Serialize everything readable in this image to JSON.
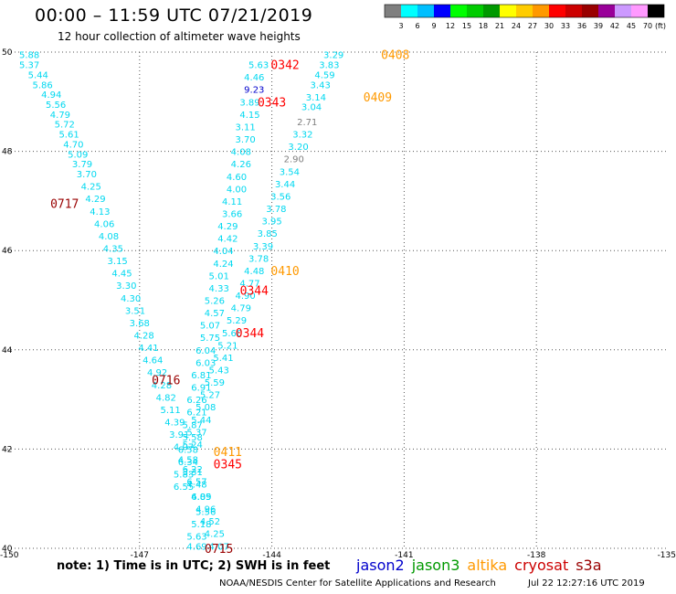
{
  "header": {
    "title": "00:00 – 11:59 UTC 07/21/2019",
    "subtitle": "12 hour collection of altimeter wave heights"
  },
  "colorbar": {
    "unit": "(ft)",
    "labels": [
      "3",
      "6",
      "9",
      "12",
      "15",
      "18",
      "21",
      "24",
      "27",
      "30",
      "33",
      "36",
      "39",
      "42",
      "45",
      "70"
    ],
    "colors": [
      "#7f7f7f",
      "#00ffff",
      "#00bfff",
      "#0000ff",
      "#00ff00",
      "#00cc00",
      "#009900",
      "#ffff00",
      "#ffcc00",
      "#ff9900",
      "#ff0000",
      "#cc0000",
      "#990000",
      "#990099",
      "#cc99ff",
      "#ff99ff",
      "#000000"
    ]
  },
  "footer": {
    "note": "note:  1) Time is in UTC;  2) SWH is in feet",
    "credit": "NOAA/NESDIS Center for Satellite Applications and Research",
    "timestamp": "Jul 22 12:27:16 UTC 2019",
    "satellites": [
      {
        "name": "jason2",
        "color": "#0000cc"
      },
      {
        "name": "jason3",
        "color": "#009900"
      },
      {
        "name": "altika",
        "color": "#ff9900"
      },
      {
        "name": "cryosat",
        "color": "#cc0000"
      },
      {
        "name": "s3a",
        "color": "#990000"
      }
    ]
  },
  "chart_data": {
    "type": "scatter",
    "xlim": [
      -150,
      -135
    ],
    "ylim": [
      40,
      50
    ],
    "xticks": [
      "-150",
      "-147",
      "-144",
      "-141",
      "-138",
      "-135"
    ],
    "xtick_values": [
      -150,
      -147,
      -144,
      -141,
      -138,
      -135
    ],
    "yticks": [
      "40",
      "42",
      "44",
      "46",
      "48",
      "50"
    ],
    "ytick_values": [
      40,
      42,
      44,
      46,
      48,
      50
    ],
    "grid": true,
    "time_labels": [
      {
        "text": "0408",
        "lon": -141.2,
        "lat": 49.95,
        "color": "#ff9900"
      },
      {
        "text": "0342",
        "lon": -143.7,
        "lat": 49.75,
        "color": "#ff0000"
      },
      {
        "text": "0409",
        "lon": -141.6,
        "lat": 49.1,
        "color": "#ff9900"
      },
      {
        "text": "0343",
        "lon": -144.0,
        "lat": 49.0,
        "color": "#ff0000"
      },
      {
        "text": "0717",
        "lon": -148.7,
        "lat": 46.95,
        "color": "#990000"
      },
      {
        "text": "0410",
        "lon": -143.7,
        "lat": 45.6,
        "color": "#ff9900"
      },
      {
        "text": "0344",
        "lon": -144.4,
        "lat": 45.2,
        "color": "#ff0000"
      },
      {
        "text": "0344",
        "lon": -144.5,
        "lat": 44.35,
        "color": "#ff0000"
      },
      {
        "text": "0716",
        "lon": -146.4,
        "lat": 43.4,
        "color": "#990000"
      },
      {
        "text": "0411",
        "lon": -145.0,
        "lat": 41.95,
        "color": "#ff9900"
      },
      {
        "text": "0345",
        "lon": -145.0,
        "lat": 41.7,
        "color": "#ff0000"
      },
      {
        "text": "0715",
        "lon": -145.2,
        "lat": 40.0,
        "color": "#990000"
      }
    ],
    "series": [
      {
        "name": "0717/0716/0715",
        "points": [
          {
            "lon": -149.5,
            "lat": 49.95,
            "swh": "5.88"
          },
          {
            "lon": -149.5,
            "lat": 49.75,
            "swh": "5.37"
          },
          {
            "lon": -149.3,
            "lat": 49.55,
            "swh": "5.44"
          },
          {
            "lon": -149.2,
            "lat": 49.35,
            "swh": "5.86"
          },
          {
            "lon": -149.0,
            "lat": 49.15,
            "swh": "4.94"
          },
          {
            "lon": -148.9,
            "lat": 48.95,
            "swh": "5.56"
          },
          {
            "lon": -148.8,
            "lat": 48.75,
            "swh": "4.79"
          },
          {
            "lon": -148.7,
            "lat": 48.55,
            "swh": "5.72"
          },
          {
            "lon": -148.6,
            "lat": 48.35,
            "swh": "5.61"
          },
          {
            "lon": -148.5,
            "lat": 48.15,
            "swh": "4.70"
          },
          {
            "lon": -148.4,
            "lat": 47.95,
            "swh": "5.09"
          },
          {
            "lon": -148.3,
            "lat": 47.75,
            "swh": "3.79"
          },
          {
            "lon": -148.2,
            "lat": 47.55,
            "swh": "3.70"
          },
          {
            "lon": -148.1,
            "lat": 47.3,
            "swh": "4.25"
          },
          {
            "lon": -148.0,
            "lat": 47.05,
            "swh": "4.29"
          },
          {
            "lon": -147.9,
            "lat": 46.8,
            "swh": "4.13"
          },
          {
            "lon": -147.8,
            "lat": 46.55,
            "swh": "4.06"
          },
          {
            "lon": -147.7,
            "lat": 46.3,
            "swh": "4.08"
          },
          {
            "lon": -147.6,
            "lat": 46.05,
            "swh": "4.35"
          },
          {
            "lon": -147.5,
            "lat": 45.8,
            "swh": "3.15"
          },
          {
            "lon": -147.4,
            "lat": 45.55,
            "swh": "4.45"
          },
          {
            "lon": -147.3,
            "lat": 45.3,
            "swh": "3.30"
          },
          {
            "lon": -147.2,
            "lat": 45.05,
            "swh": "4.30"
          },
          {
            "lon": -147.1,
            "lat": 44.8,
            "swh": "3.51"
          },
          {
            "lon": -147.0,
            "lat": 44.55,
            "swh": "3.68"
          },
          {
            "lon": -146.9,
            "lat": 44.3,
            "swh": "4.28"
          },
          {
            "lon": -146.8,
            "lat": 44.05,
            "swh": "4.41"
          },
          {
            "lon": -146.7,
            "lat": 43.8,
            "swh": "4.64"
          },
          {
            "lon": -146.6,
            "lat": 43.55,
            "swh": "4.92"
          },
          {
            "lon": -146.5,
            "lat": 43.3,
            "swh": "4.28"
          },
          {
            "lon": -146.4,
            "lat": 43.05,
            "swh": "4.82"
          },
          {
            "lon": -146.3,
            "lat": 42.8,
            "swh": "5.11"
          },
          {
            "lon": -146.2,
            "lat": 42.55,
            "swh": "4.39"
          },
          {
            "lon": -146.1,
            "lat": 42.3,
            "swh": "3.91"
          },
          {
            "lon": -146.0,
            "lat": 42.05,
            "swh": "4.07"
          },
          {
            "lon": -145.9,
            "lat": 41.8,
            "swh": "4.58"
          },
          {
            "lon": -145.8,
            "lat": 41.55,
            "swh": "3.31"
          },
          {
            "lon": -145.7,
            "lat": 41.3,
            "swh": "4.48"
          },
          {
            "lon": -145.6,
            "lat": 41.05,
            "swh": "4.89"
          },
          {
            "lon": -145.5,
            "lat": 40.8,
            "swh": "4.96"
          },
          {
            "lon": -145.4,
            "lat": 40.55,
            "swh": "4.52"
          },
          {
            "lon": -145.3,
            "lat": 40.3,
            "swh": "4.25"
          },
          {
            "lon": -145.2,
            "lat": 40.05,
            "swh": "4.07"
          }
        ]
      },
      {
        "name": "0342/0343/0344/0345",
        "points": [
          {
            "lon": -144.3,
            "lat": 49.75,
            "swh": "5.63"
          },
          {
            "lon": -144.4,
            "lat": 49.5,
            "swh": "4.46"
          },
          {
            "lon": -144.4,
            "lat": 49.25,
            "swh": "9.23"
          },
          {
            "lon": -144.5,
            "lat": 49.0,
            "swh": "3.89"
          },
          {
            "lon": -144.5,
            "lat": 48.75,
            "swh": "4.15"
          },
          {
            "lon": -144.6,
            "lat": 48.5,
            "swh": "3.11"
          },
          {
            "lon": -144.6,
            "lat": 48.25,
            "swh": "3.70"
          },
          {
            "lon": -144.7,
            "lat": 48.0,
            "swh": "4.08"
          },
          {
            "lon": -144.7,
            "lat": 47.75,
            "swh": "4.26"
          },
          {
            "lon": -144.8,
            "lat": 47.5,
            "swh": "4.60"
          },
          {
            "lon": -144.8,
            "lat": 47.25,
            "swh": "4.00"
          },
          {
            "lon": -144.9,
            "lat": 47.0,
            "swh": "4.11"
          },
          {
            "lon": -144.9,
            "lat": 46.75,
            "swh": "3.66"
          },
          {
            "lon": -145.0,
            "lat": 46.5,
            "swh": "4.29"
          },
          {
            "lon": -145.0,
            "lat": 46.25,
            "swh": "4.42"
          },
          {
            "lon": -145.1,
            "lat": 46.0,
            "swh": "4.04"
          },
          {
            "lon": -145.1,
            "lat": 45.75,
            "swh": "4.24"
          },
          {
            "lon": -145.2,
            "lat": 45.5,
            "swh": "5.01"
          },
          {
            "lon": -145.2,
            "lat": 45.25,
            "swh": "4.33"
          },
          {
            "lon": -145.3,
            "lat": 45.0,
            "swh": "5.26"
          },
          {
            "lon": -145.3,
            "lat": 44.75,
            "swh": "4.57"
          },
          {
            "lon": -145.4,
            "lat": 44.5,
            "swh": "5.07"
          },
          {
            "lon": -145.4,
            "lat": 44.25,
            "swh": "5.75"
          },
          {
            "lon": -145.5,
            "lat": 44.0,
            "swh": "6.04"
          },
          {
            "lon": -145.5,
            "lat": 43.75,
            "swh": "6.03"
          },
          {
            "lon": -145.6,
            "lat": 43.5,
            "swh": "6.81"
          },
          {
            "lon": -145.6,
            "lat": 43.25,
            "swh": "6.91"
          },
          {
            "lon": -145.7,
            "lat": 43.0,
            "swh": "6.26"
          },
          {
            "lon": -145.7,
            "lat": 42.75,
            "swh": "6.21"
          },
          {
            "lon": -145.8,
            "lat": 42.5,
            "swh": "5.87"
          },
          {
            "lon": -145.8,
            "lat": 42.25,
            "swh": "5.58"
          },
          {
            "lon": -145.9,
            "lat": 42.0,
            "swh": "6.58"
          },
          {
            "lon": -145.9,
            "lat": 41.75,
            "swh": "6.34"
          },
          {
            "lon": -146.0,
            "lat": 41.5,
            "swh": "5.83"
          },
          {
            "lon": -146.0,
            "lat": 41.25,
            "swh": "6.55"
          }
        ]
      },
      {
        "name": "0408/0409/0410/0411",
        "points": [
          {
            "lon": -142.6,
            "lat": 49.95,
            "swh": "3.29"
          },
          {
            "lon": -142.7,
            "lat": 49.75,
            "swh": "3.83"
          },
          {
            "lon": -142.8,
            "lat": 49.55,
            "swh": "4.59"
          },
          {
            "lon": -142.9,
            "lat": 49.35,
            "swh": "3.43"
          },
          {
            "lon": -143.0,
            "lat": 49.1,
            "swh": "3.14"
          },
          {
            "lon": -143.1,
            "lat": 48.9,
            "swh": "3.04"
          },
          {
            "lon": -143.2,
            "lat": 48.6,
            "swh": "2.71"
          },
          {
            "lon": -143.3,
            "lat": 48.35,
            "swh": "3.32"
          },
          {
            "lon": -143.4,
            "lat": 48.1,
            "swh": "3.20"
          },
          {
            "lon": -143.5,
            "lat": 47.85,
            "swh": "2.90"
          },
          {
            "lon": -143.6,
            "lat": 47.6,
            "swh": "3.54"
          },
          {
            "lon": -143.7,
            "lat": 47.35,
            "swh": "3.44"
          },
          {
            "lon": -143.8,
            "lat": 47.1,
            "swh": "3.56"
          },
          {
            "lon": -143.9,
            "lat": 46.85,
            "swh": "3.78"
          },
          {
            "lon": -144.0,
            "lat": 46.6,
            "swh": "3.95"
          },
          {
            "lon": -144.1,
            "lat": 46.35,
            "swh": "3.85"
          },
          {
            "lon": -144.2,
            "lat": 46.1,
            "swh": "3.39"
          },
          {
            "lon": -144.3,
            "lat": 45.85,
            "swh": "3.78"
          },
          {
            "lon": -144.4,
            "lat": 45.6,
            "swh": "4.48"
          },
          {
            "lon": -144.5,
            "lat": 45.35,
            "swh": "4.77"
          },
          {
            "lon": -144.6,
            "lat": 45.1,
            "swh": "4.90"
          },
          {
            "lon": -144.7,
            "lat": 44.85,
            "swh": "4.79"
          },
          {
            "lon": -144.8,
            "lat": 44.6,
            "swh": "5.29"
          },
          {
            "lon": -144.9,
            "lat": 44.35,
            "swh": "5.60"
          },
          {
            "lon": -145.0,
            "lat": 44.1,
            "swh": "5.21"
          },
          {
            "lon": -145.1,
            "lat": 43.85,
            "swh": "5.41"
          },
          {
            "lon": -145.2,
            "lat": 43.6,
            "swh": "5.43"
          },
          {
            "lon": -145.3,
            "lat": 43.35,
            "swh": "5.59"
          },
          {
            "lon": -145.4,
            "lat": 43.1,
            "swh": "5.27"
          },
          {
            "lon": -145.5,
            "lat": 42.85,
            "swh": "5.08"
          },
          {
            "lon": -145.6,
            "lat": 42.6,
            "swh": "5.44"
          },
          {
            "lon": -145.7,
            "lat": 42.35,
            "swh": "5.37"
          },
          {
            "lon": -145.8,
            "lat": 42.1,
            "swh": "5.24"
          },
          {
            "lon": -145.8,
            "lat": 41.6,
            "swh": "6.22"
          },
          {
            "lon": -145.7,
            "lat": 41.35,
            "swh": "6.57"
          },
          {
            "lon": -145.6,
            "lat": 41.05,
            "swh": "6.05"
          },
          {
            "lon": -145.5,
            "lat": 40.75,
            "swh": "5.56"
          },
          {
            "lon": -145.6,
            "lat": 40.5,
            "swh": "5.18"
          },
          {
            "lon": -145.7,
            "lat": 40.25,
            "swh": "5.63"
          },
          {
            "lon": -145.7,
            "lat": 40.05,
            "swh": "4.69"
          }
        ]
      }
    ],
    "highlighted_points": [
      {
        "swh": "9.23",
        "color": "#0000cc"
      },
      {
        "swh": "2.71",
        "color": "#7f7f7f"
      },
      {
        "swh": "2.90",
        "color": "#7f7f7f"
      }
    ]
  }
}
